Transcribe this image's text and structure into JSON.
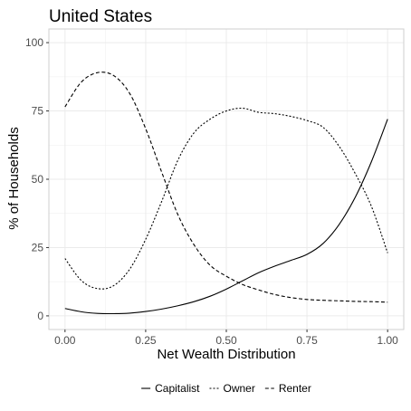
{
  "chart_data": {
    "type": "line",
    "title": "United States",
    "xlabel": "Net Wealth Distribution",
    "ylabel": "% of Households",
    "xlim": [
      -0.05,
      1.05
    ],
    "ylim": [
      -5,
      105
    ],
    "xticks": [
      0,
      0.25,
      0.5,
      0.75,
      1
    ],
    "xtick_labels": [
      "0.00",
      "0.25",
      "0.50",
      "0.75",
      "1.00"
    ],
    "yticks": [
      0,
      25,
      50,
      75,
      100
    ],
    "ytick_labels": [
      "0",
      "25",
      "50",
      "75",
      "100"
    ],
    "grid": true,
    "legend_position": "bottom",
    "series": [
      {
        "name": "Capitalist",
        "dash": "solid",
        "x": [
          0,
          0.05,
          0.1,
          0.15,
          0.2,
          0.25,
          0.3,
          0.35,
          0.4,
          0.45,
          0.5,
          0.55,
          0.6,
          0.65,
          0.7,
          0.75,
          0.8,
          0.85,
          0.9,
          0.95,
          1
        ],
        "y": [
          2.7,
          1.5,
          0.9,
          0.8,
          1.0,
          1.6,
          2.5,
          3.7,
          5.2,
          7.2,
          9.8,
          12.8,
          15.8,
          18.2,
          20.3,
          22.5,
          26.5,
          33.5,
          43.5,
          56.5,
          72
        ]
      },
      {
        "name": "Owner",
        "dash": "dotted",
        "x": [
          0,
          0.05,
          0.1,
          0.15,
          0.2,
          0.25,
          0.3,
          0.35,
          0.4,
          0.45,
          0.5,
          0.55,
          0.6,
          0.65,
          0.7,
          0.75,
          0.8,
          0.85,
          0.9,
          0.95,
          1
        ],
        "y": [
          21,
          13,
          10,
          11,
          17,
          28,
          42,
          57,
          67,
          72,
          75,
          76,
          74.5,
          74,
          73,
          71.5,
          69,
          62,
          52,
          40,
          23
        ]
      },
      {
        "name": "Renter",
        "dash": "dashed",
        "x": [
          0,
          0.05,
          0.1,
          0.15,
          0.2,
          0.25,
          0.3,
          0.35,
          0.4,
          0.45,
          0.5,
          0.55,
          0.6,
          0.65,
          0.7,
          0.75,
          0.8,
          0.85,
          0.9,
          0.95,
          1
        ],
        "y": [
          76.5,
          85.5,
          89,
          88,
          81.5,
          68.5,
          52.5,
          37,
          26,
          18.5,
          14.5,
          11.5,
          9.5,
          7.8,
          6.7,
          6,
          5.7,
          5.5,
          5.3,
          5.2,
          5
        ]
      }
    ]
  }
}
